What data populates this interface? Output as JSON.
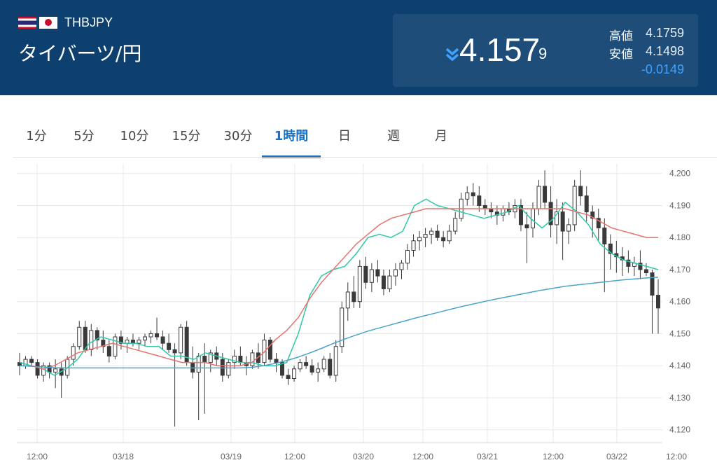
{
  "pair": {
    "code": "THBJPY",
    "name": "タイバーツ/円"
  },
  "icons": {
    "flag_left": "thailand-flag-icon",
    "flag_right": "japan-flag-icon",
    "trend": "double-chevron-down-icon"
  },
  "quote": {
    "price_main": "4.157",
    "price_sub": "9",
    "high_label": "高値",
    "high_value": "4.1759",
    "low_label": "安値",
    "low_value": "4.1498",
    "change": "-0.0149"
  },
  "colors": {
    "header_bg": "#0d3f6f",
    "change": "#3da3ff",
    "active_tab": "#1a73c6",
    "ma_short": "#2ec9a6",
    "ma_mid": "#e5736f",
    "ma_long": "#4ba3c8",
    "candle": "#3a3a3a"
  },
  "tabs": [
    {
      "label": "1分",
      "active": false
    },
    {
      "label": "5分",
      "active": false
    },
    {
      "label": "10分",
      "active": false
    },
    {
      "label": "15分",
      "active": false
    },
    {
      "label": "30分",
      "active": false
    },
    {
      "label": "1時間",
      "active": true
    },
    {
      "label": "日",
      "active": false
    },
    {
      "label": "週",
      "active": false
    },
    {
      "label": "月",
      "active": false
    }
  ],
  "chart_data": {
    "type": "candlestick",
    "ylim": [
      4.116,
      4.203
    ],
    "y_ticks": [
      "4.200",
      "4.190",
      "4.180",
      "4.170",
      "4.160",
      "4.150",
      "4.140",
      "4.130",
      "4.120"
    ],
    "x_ticks": [
      "12:00",
      "03/18",
      "03/19",
      "12:00",
      "03/20",
      "12:00",
      "03/21",
      "12:00",
      "03/22",
      "12:00"
    ],
    "grid": true,
    "candles": [
      [
        4.141,
        4.144,
        4.137,
        4.14
      ],
      [
        4.14,
        4.143,
        4.139,
        4.142
      ],
      [
        4.142,
        4.143,
        4.14,
        4.141
      ],
      [
        4.141,
        4.142,
        4.136,
        4.137
      ],
      [
        4.137,
        4.141,
        4.135,
        4.14
      ],
      [
        4.14,
        4.141,
        4.136,
        4.138
      ],
      [
        4.138,
        4.142,
        4.133,
        4.139
      ],
      [
        4.139,
        4.141,
        4.13,
        4.137
      ],
      [
        4.137,
        4.143,
        4.136,
        4.142
      ],
      [
        4.142,
        4.147,
        4.14,
        4.146
      ],
      [
        4.146,
        4.154,
        4.145,
        4.152
      ],
      [
        4.152,
        4.154,
        4.144,
        4.145
      ],
      [
        4.145,
        4.153,
        4.143,
        4.151
      ],
      [
        4.151,
        4.152,
        4.145,
        4.148
      ],
      [
        4.148,
        4.151,
        4.144,
        4.146
      ],
      [
        4.146,
        4.148,
        4.141,
        4.143
      ],
      [
        4.143,
        4.15,
        4.142,
        4.149
      ],
      [
        4.149,
        4.151,
        4.145,
        4.147
      ],
      [
        4.147,
        4.149,
        4.144,
        4.148
      ],
      [
        4.148,
        4.15,
        4.146,
        4.147
      ],
      [
        4.147,
        4.149,
        4.145,
        4.148
      ],
      [
        4.148,
        4.15,
        4.146,
        4.149
      ],
      [
        4.149,
        4.151,
        4.147,
        4.15
      ],
      [
        4.15,
        4.155,
        4.148,
        4.149
      ],
      [
        4.149,
        4.151,
        4.145,
        4.147
      ],
      [
        4.147,
        4.15,
        4.144,
        4.145
      ],
      [
        4.145,
        4.147,
        4.121,
        4.144
      ],
      [
        4.144,
        4.153,
        4.142,
        4.152
      ],
      [
        4.152,
        4.154,
        4.14,
        4.141
      ],
      [
        4.141,
        4.146,
        4.136,
        4.138
      ],
      [
        4.138,
        4.144,
        4.123,
        4.143
      ],
      [
        4.143,
        4.147,
        4.125,
        4.141
      ],
      [
        4.141,
        4.145,
        4.138,
        4.144
      ],
      [
        4.144,
        4.146,
        4.14,
        4.142
      ],
      [
        4.142,
        4.144,
        4.135,
        4.137
      ],
      [
        4.137,
        4.142,
        4.136,
        4.141
      ],
      [
        4.141,
        4.145,
        4.139,
        4.143
      ],
      [
        4.143,
        4.146,
        4.14,
        4.141
      ],
      [
        4.141,
        4.143,
        4.137,
        4.14
      ],
      [
        4.14,
        4.145,
        4.139,
        4.144
      ],
      [
        4.144,
        4.147,
        4.139,
        4.141
      ],
      [
        4.141,
        4.15,
        4.14,
        4.148
      ],
      [
        4.148,
        4.149,
        4.141,
        4.142
      ],
      [
        4.142,
        4.144,
        4.138,
        4.141
      ],
      [
        4.141,
        4.142,
        4.136,
        4.137
      ],
      [
        4.137,
        4.139,
        4.134,
        4.136
      ],
      [
        4.136,
        4.14,
        4.135,
        4.139
      ],
      [
        4.139,
        4.142,
        4.138,
        4.141
      ],
      [
        4.141,
        4.143,
        4.139,
        4.14
      ],
      [
        4.14,
        4.142,
        4.137,
        4.138
      ],
      [
        4.138,
        4.141,
        4.135,
        4.139
      ],
      [
        4.139,
        4.143,
        4.138,
        4.142
      ],
      [
        4.142,
        4.144,
        4.136,
        4.137
      ],
      [
        4.137,
        4.148,
        4.135,
        4.146
      ],
      [
        4.146,
        4.16,
        4.144,
        4.158
      ],
      [
        4.158,
        4.166,
        4.154,
        4.163
      ],
      [
        4.163,
        4.168,
        4.158,
        4.16
      ],
      [
        4.16,
        4.173,
        4.158,
        4.171
      ],
      [
        4.171,
        4.174,
        4.164,
        4.166
      ],
      [
        4.166,
        4.172,
        4.163,
        4.17
      ],
      [
        4.17,
        4.173,
        4.166,
        4.168
      ],
      [
        4.168,
        4.17,
        4.162,
        4.164
      ],
      [
        4.164,
        4.17,
        4.163,
        4.168
      ],
      [
        4.168,
        4.172,
        4.165,
        4.17
      ],
      [
        4.17,
        4.173,
        4.167,
        4.172
      ],
      [
        4.172,
        4.178,
        4.17,
        4.176
      ],
      [
        4.176,
        4.181,
        4.174,
        4.179
      ],
      [
        4.179,
        4.182,
        4.176,
        4.18
      ],
      [
        4.18,
        4.183,
        4.177,
        4.181
      ],
      [
        4.181,
        4.183,
        4.178,
        4.182
      ],
      [
        4.182,
        4.184,
        4.179,
        4.18
      ],
      [
        4.18,
        4.182,
        4.177,
        4.179
      ],
      [
        4.179,
        4.184,
        4.178,
        4.182
      ],
      [
        4.182,
        4.188,
        4.181,
        4.186
      ],
      [
        4.186,
        4.194,
        4.185,
        4.192
      ],
      [
        4.192,
        4.196,
        4.19,
        4.194
      ],
      [
        4.194,
        4.197,
        4.19,
        4.193
      ],
      [
        4.193,
        4.196,
        4.188,
        4.19
      ],
      [
        4.19,
        4.192,
        4.187,
        4.189
      ],
      [
        4.189,
        4.191,
        4.186,
        4.188
      ],
      [
        4.188,
        4.19,
        4.184,
        4.187
      ],
      [
        4.187,
        4.19,
        4.185,
        4.189
      ],
      [
        4.189,
        4.191,
        4.187,
        4.188
      ],
      [
        4.188,
        4.192,
        4.186,
        4.19
      ],
      [
        4.19,
        4.192,
        4.182,
        4.184
      ],
      [
        4.184,
        4.188,
        4.172,
        4.183
      ],
      [
        4.183,
        4.191,
        4.18,
        4.189
      ],
      [
        4.189,
        4.198,
        4.187,
        4.196
      ],
      [
        4.196,
        4.201,
        4.189,
        4.191
      ],
      [
        4.191,
        4.196,
        4.18,
        4.184
      ],
      [
        4.184,
        4.192,
        4.178,
        4.188
      ],
      [
        4.188,
        4.191,
        4.173,
        4.182
      ],
      [
        4.182,
        4.186,
        4.178,
        4.184
      ],
      [
        4.184,
        4.198,
        4.182,
        4.196
      ],
      [
        4.196,
        4.201,
        4.19,
        4.193
      ],
      [
        4.193,
        4.196,
        4.185,
        4.188
      ],
      [
        4.188,
        4.19,
        4.18,
        4.186
      ],
      [
        4.186,
        4.189,
        4.179,
        4.183
      ],
      [
        4.183,
        4.186,
        4.163,
        4.178
      ],
      [
        4.178,
        4.181,
        4.17,
        4.175
      ],
      [
        4.175,
        4.179,
        4.169,
        4.174
      ],
      [
        4.174,
        4.177,
        4.168,
        4.173
      ],
      [
        4.173,
        4.176,
        4.169,
        4.171
      ],
      [
        4.171,
        4.174,
        4.168,
        4.172
      ],
      [
        4.172,
        4.176,
        4.167,
        4.17
      ],
      [
        4.17,
        4.172,
        4.168,
        4.169
      ],
      [
        4.169,
        4.17,
        4.15,
        4.162
      ],
      [
        4.162,
        4.167,
        4.15,
        4.158
      ]
    ],
    "moving_averages": [
      {
        "color": "#2ec9a6",
        "values": [
          4.141,
          4.14,
          4.139,
          4.137,
          4.139,
          4.142,
          4.147,
          4.149,
          4.148,
          4.147,
          4.147,
          4.146,
          4.146,
          4.143,
          4.143,
          4.142,
          4.144,
          4.143,
          4.142,
          4.141,
          4.141,
          4.14,
          4.14,
          4.141,
          4.15,
          4.162,
          4.168,
          4.17,
          4.171,
          4.175,
          4.18,
          4.181,
          4.18,
          4.182,
          4.19,
          4.192,
          4.19,
          4.189,
          4.188,
          4.187,
          4.186,
          4.187,
          4.188,
          4.19,
          4.186,
          4.183,
          4.186,
          4.191,
          4.188,
          4.184,
          4.178,
          4.175,
          4.173,
          4.172,
          4.171,
          4.17
        ]
      },
      {
        "color": "#e5736f",
        "values": [
          4.14,
          4.14,
          4.139,
          4.14,
          4.142,
          4.144,
          4.145,
          4.146,
          4.147,
          4.146,
          4.145,
          4.144,
          4.143,
          4.142,
          4.141,
          4.141,
          4.141,
          4.14,
          4.14,
          4.14,
          4.141,
          4.144,
          4.148,
          4.151,
          4.155,
          4.161,
          4.166,
          4.17,
          4.174,
          4.178,
          4.181,
          4.184,
          4.186,
          4.187,
          4.188,
          4.189,
          4.189,
          4.189,
          4.189,
          4.189,
          4.189,
          4.189,
          4.189,
          4.189,
          4.189,
          4.189,
          4.189,
          4.189,
          4.188,
          4.187,
          4.185,
          4.183,
          4.182,
          4.181,
          4.18,
          4.18
        ]
      },
      {
        "color": "#4ba3c8",
        "values": [
          4.14,
          4.1398,
          4.1396,
          4.1394,
          4.1393,
          4.1393,
          4.1393,
          4.1393,
          4.1393,
          4.1393,
          4.1393,
          4.1393,
          4.1393,
          4.1393,
          4.1393,
          4.1393,
          4.1393,
          4.1393,
          4.1393,
          4.1393,
          4.1395,
          4.14,
          4.1407,
          4.1416,
          4.1427,
          4.144,
          4.1454,
          4.1469,
          4.1483,
          4.1496,
          4.1508,
          4.1518,
          4.1528,
          4.1538,
          4.1548,
          4.1557,
          4.1566,
          4.1575,
          4.1584,
          4.1592,
          4.16,
          4.1608,
          4.1615,
          4.1622,
          4.1629,
          4.1636,
          4.1642,
          4.1648,
          4.1652,
          4.1656,
          4.166,
          4.1664,
          4.1668,
          4.1671,
          4.1674,
          4.1676
        ]
      }
    ]
  }
}
